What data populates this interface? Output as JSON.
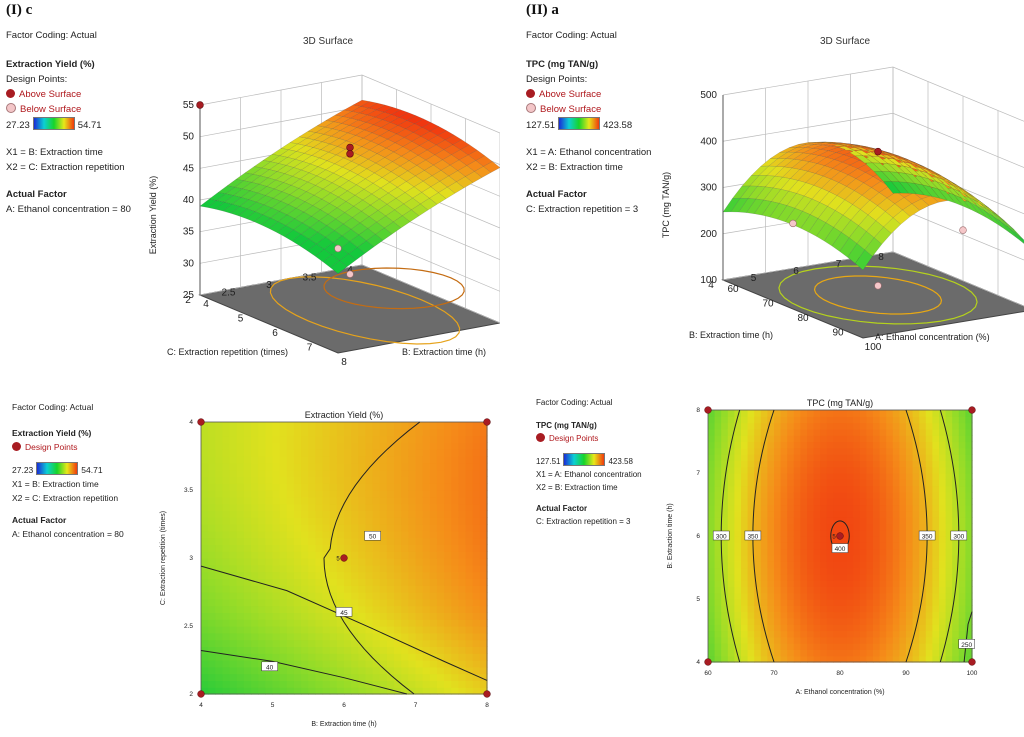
{
  "panels": {
    "p1": {
      "label": "(I) c",
      "factor_coding": "Factor Coding: Actual",
      "title": "3D Surface",
      "response": "Extraction Yield (%)",
      "design_points": "Design Points:",
      "above": "Above Surface",
      "below": "Below Surface",
      "range_min": "27.23",
      "range_max": "54.71",
      "x1": "X1 = B: Extraction time",
      "x2": "X2 = C: Extraction repetition",
      "actual_factor": "Actual Factor",
      "actual_value": "A: Ethanol concentration = 80"
    },
    "p2": {
      "label": "(II) a",
      "factor_coding": "Factor Coding: Actual",
      "title": "3D Surface",
      "response": "TPC (mg TAN/g)",
      "design_points": "Design Points:",
      "above": "Above Surface",
      "below": "Below Surface",
      "range_min": "127.51",
      "range_max": "423.58",
      "x1": "X1 = A: Ethanol concentration",
      "x2": "X2 = B: Extraction time",
      "actual_factor": "Actual Factor",
      "actual_value": "C: Extraction repetition = 3"
    },
    "p3": {
      "factor_coding": "Factor Coding: Actual",
      "response": "Extraction Yield (%)",
      "design_points": "Design Points",
      "range_min": "27.23",
      "range_max": "54.71",
      "x1": "X1 = B: Extraction time",
      "x2": "X2 = C: Extraction repetition",
      "actual_factor": "Actual Factor",
      "actual_value": "A: Ethanol concentration = 80"
    },
    "p4": {
      "factor_coding": "Factor Coding: Actual",
      "response": "TPC (mg TAN/g)",
      "design_points": "Design Points",
      "range_min": "127.51",
      "range_max": "423.58",
      "x1": "X1 = A: Ethanol concentration",
      "x2": "X2 = B: Extraction time",
      "actual_factor": "Actual Factor",
      "actual_value": "C: Extraction repetition = 3"
    }
  },
  "chart_data": [
    {
      "type": "surface",
      "title": "3D Surface",
      "zlabel": "Extraction Yield (%)",
      "xlabel": "B: Extraction time (h)",
      "ylabel": "C: Extraction repetition (times)",
      "x_ticks": [
        "4",
        "5",
        "6",
        "7",
        "8"
      ],
      "y_ticks": [
        "2",
        "2.5",
        "3",
        "3.5",
        "4"
      ],
      "z_ticks": [
        "25",
        "30",
        "35",
        "40",
        "45",
        "50",
        "55"
      ],
      "xlim": [
        4,
        8
      ],
      "ylim": [
        2,
        4
      ],
      "zlim": [
        25,
        55
      ],
      "design_points_above": [
        [
          6,
          3,
          50.5
        ],
        [
          6,
          3,
          49.5
        ],
        [
          4,
          4,
          55
        ]
      ],
      "design_points_below": [
        [
          4,
          2,
          41.5
        ],
        [
          6,
          3,
          30.5
        ]
      ]
    },
    {
      "type": "surface",
      "title": "3D Surface",
      "zlabel": "TPC (mg TAN/g)",
      "xlabel": "A: Ethanol concentration (%)",
      "ylabel": "B: Extraction time (h)",
      "x_ticks": [
        "60",
        "70",
        "80",
        "90",
        "100"
      ],
      "y_ticks": [
        "4",
        "5",
        "6",
        "7",
        "8"
      ],
      "z_ticks": [
        "100",
        "200",
        "300",
        "400",
        "500"
      ],
      "xlim": [
        60,
        100
      ],
      "ylim": [
        4,
        8
      ],
      "zlim": [
        100,
        500
      ],
      "design_points_above": [
        [
          80,
          6,
          410
        ]
      ],
      "design_points_below": [
        [
          60,
          6,
          285
        ],
        [
          100,
          6,
          210
        ],
        [
          80,
          6,
          120
        ]
      ]
    },
    {
      "type": "contour",
      "title": "Extraction Yield (%)",
      "xlabel": "B: Extraction time (h)",
      "ylabel": "C: Extraction repetition (times)",
      "x_ticks": [
        "4",
        "5",
        "6",
        "7",
        "8"
      ],
      "y_ticks": [
        "2",
        "2.5",
        "3",
        "3.5",
        "4"
      ],
      "xlim": [
        4,
        8
      ],
      "ylim": [
        2,
        4
      ],
      "contour_labels": [
        "40",
        "45",
        "50"
      ],
      "design_points": [
        {
          "x": 4,
          "y": 2,
          "label": ""
        },
        {
          "x": 8,
          "y": 2,
          "label": ""
        },
        {
          "x": 4,
          "y": 4,
          "label": ""
        },
        {
          "x": 8,
          "y": 4,
          "label": ""
        },
        {
          "x": 6,
          "y": 3,
          "label": "5"
        }
      ]
    },
    {
      "type": "contour",
      "title": "TPC (mg TAN/g)",
      "xlabel": "A: Ethanol concentration (%)",
      "ylabel": "B: Extraction time (h)",
      "x_ticks": [
        "60",
        "70",
        "80",
        "90",
        "100"
      ],
      "y_ticks": [
        "4",
        "5",
        "6",
        "7",
        "8"
      ],
      "xlim": [
        60,
        100
      ],
      "ylim": [
        4,
        8
      ],
      "contour_labels": [
        "300",
        "350",
        "400",
        "350",
        "300",
        "250"
      ],
      "design_points": [
        {
          "x": 60,
          "y": 4,
          "label": ""
        },
        {
          "x": 100,
          "y": 4,
          "label": ""
        },
        {
          "x": 60,
          "y": 8,
          "label": ""
        },
        {
          "x": 100,
          "y": 8,
          "label": ""
        },
        {
          "x": 80,
          "y": 6,
          "label": "5"
        }
      ]
    }
  ]
}
